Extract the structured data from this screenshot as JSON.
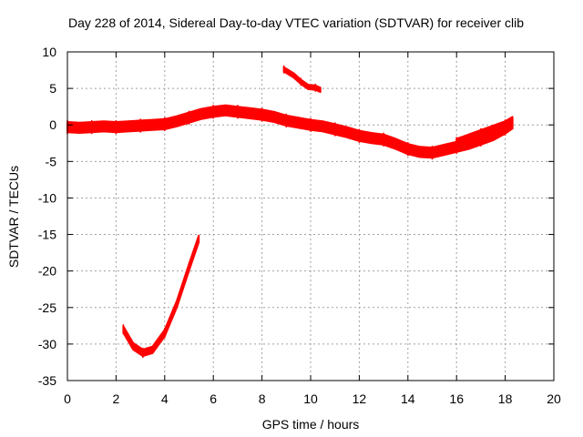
{
  "chart_data": {
    "type": "line",
    "title": "Day 228 of 2014, Sidereal Day-to-day VTEC variation (SDTVAR) for receiver clib",
    "xlabel": "GPS time / hours",
    "ylabel": "SDTVAR / TECUs",
    "xlim": [
      0,
      20
    ],
    "ylim": [
      -35,
      10
    ],
    "grid": true,
    "xticks": [
      0,
      2,
      4,
      6,
      8,
      10,
      12,
      14,
      16,
      18,
      20
    ],
    "xtick_labels": [
      "0",
      "2",
      "4",
      "6",
      "8",
      "10",
      "12",
      "14",
      "16",
      "18",
      "20"
    ],
    "yticks": [
      10,
      5,
      0,
      -5,
      -10,
      -15,
      -20,
      -25,
      -30,
      -35
    ],
    "ytick_labels": [
      "10",
      "5",
      "0",
      "-5",
      "-10",
      "-15",
      "-20",
      "-25",
      "-30",
      "-35"
    ],
    "series_color": "#ff0000",
    "series": [
      {
        "name": "main-trace",
        "band": 1.4,
        "points": [
          [
            0.0,
            -0.3
          ],
          [
            0.5,
            -0.4
          ],
          [
            1.0,
            -0.3
          ],
          [
            1.5,
            -0.2
          ],
          [
            2.0,
            -0.3
          ],
          [
            2.5,
            -0.2
          ],
          [
            3.0,
            -0.1
          ],
          [
            3.5,
            0.0
          ],
          [
            4.0,
            0.1
          ],
          [
            4.5,
            0.5
          ],
          [
            5.0,
            1.0
          ],
          [
            5.5,
            1.5
          ],
          [
            6.0,
            1.8
          ],
          [
            6.5,
            2.0
          ],
          [
            7.0,
            1.8
          ],
          [
            7.5,
            1.6
          ],
          [
            8.0,
            1.4
          ],
          [
            8.5,
            1.1
          ],
          [
            9.0,
            0.6
          ],
          [
            9.5,
            0.3
          ],
          [
            10.0,
            0.0
          ],
          [
            10.5,
            -0.2
          ],
          [
            11.0,
            -0.6
          ],
          [
            11.5,
            -1.0
          ],
          [
            12.0,
            -1.5
          ],
          [
            12.5,
            -1.8
          ],
          [
            13.0,
            -2.0
          ],
          [
            13.5,
            -2.6
          ],
          [
            14.0,
            -3.3
          ],
          [
            14.5,
            -3.7
          ],
          [
            15.0,
            -3.8
          ],
          [
            15.5,
            -3.4
          ],
          [
            16.0,
            -3.0
          ],
          [
            16.5,
            -2.6
          ],
          [
            17.0,
            -2.0
          ],
          [
            17.5,
            -1.4
          ],
          [
            18.0,
            -0.5
          ],
          [
            18.3,
            0.2
          ]
        ]
      },
      {
        "name": "secondary-trace",
        "band": 1.0,
        "points": [
          [
            16.0,
            -2.4
          ],
          [
            16.5,
            -1.8
          ],
          [
            17.0,
            -1.2
          ],
          [
            17.5,
            -0.6
          ],
          [
            18.0,
            0.0
          ],
          [
            18.3,
            0.6
          ]
        ]
      },
      {
        "name": "upper-trace",
        "band": 0.6,
        "points": [
          [
            8.9,
            7.6
          ],
          [
            9.3,
            6.8
          ],
          [
            9.6,
            5.9
          ],
          [
            9.9,
            5.2
          ],
          [
            10.2,
            5.1
          ],
          [
            10.4,
            4.8
          ]
        ]
      },
      {
        "name": "lower-trace",
        "band": 0.9,
        "points": [
          [
            2.3,
            -28.0
          ],
          [
            2.7,
            -30.3
          ],
          [
            3.1,
            -31.2
          ],
          [
            3.5,
            -30.8
          ],
          [
            4.0,
            -28.5
          ],
          [
            4.5,
            -24.5
          ],
          [
            5.0,
            -19.5
          ],
          [
            5.4,
            -15.6
          ]
        ]
      }
    ]
  }
}
